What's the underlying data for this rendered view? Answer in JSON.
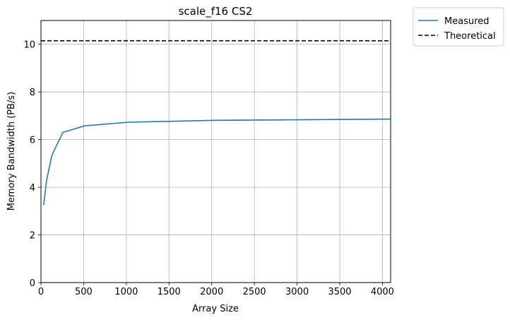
{
  "chart_data": {
    "type": "line",
    "title": "scale_f16 CS2",
    "xlabel": "Array Size",
    "ylabel": "Memory Bandwidth (PB/s)",
    "xlim": [
      0,
      4096
    ],
    "ylim": [
      0,
      11
    ],
    "xticks": [
      0,
      500,
      1000,
      1500,
      2000,
      2500,
      3000,
      3500,
      4000
    ],
    "yticks": [
      0,
      2,
      4,
      6,
      8,
      10
    ],
    "grid": true,
    "legend_position": "outside-top-right",
    "series": [
      {
        "name": "Measured",
        "style": "solid",
        "color": "#1f77b4",
        "x": [
          32,
          64,
          128,
          256,
          512,
          1024,
          2048,
          4096
        ],
        "y": [
          3.25,
          4.25,
          5.35,
          6.3,
          6.58,
          6.73,
          6.81,
          6.86
        ]
      },
      {
        "name": "Theoretical",
        "style": "dashed",
        "color": "#000000",
        "x": [
          0,
          4096
        ],
        "y": [
          10.15,
          10.15
        ]
      }
    ]
  }
}
